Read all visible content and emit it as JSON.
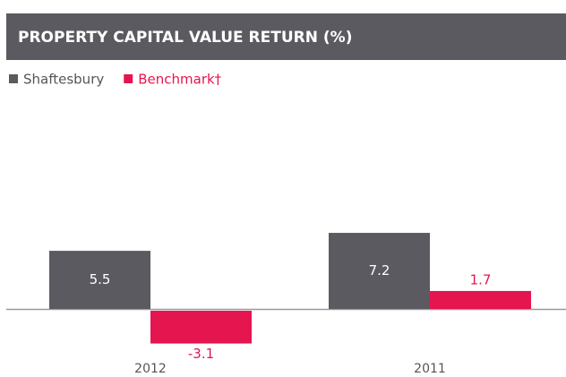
{
  "chart_data": {
    "type": "bar",
    "title": "PROPERTY CAPITAL VALUE RETURN (%)",
    "categories": [
      "2012",
      "2011"
    ],
    "series": [
      {
        "name": "Shaftesbury",
        "color": "#5b5a60",
        "values": [
          5.5,
          7.2
        ]
      },
      {
        "name": "Benchmark†",
        "color": "#e5154f",
        "values": [
          -3.1,
          1.7
        ]
      }
    ],
    "legend": "top-left"
  }
}
